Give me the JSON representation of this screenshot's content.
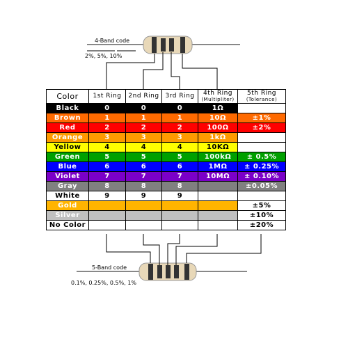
{
  "top_label": {
    "title": "4-Band code",
    "tolerances": "2%, 5%, 10%"
  },
  "bottom_label": {
    "title": "5-Band code",
    "tolerances": "0.1%, 0.25%, 0.5%, 1%"
  },
  "table": {
    "columns": [
      "Color",
      "1st Ring",
      "2nd Ring",
      "3rd Ring",
      "4th Ring",
      "5th Ring"
    ],
    "column_notes": [
      null,
      null,
      null,
      null,
      "(Multipliter)",
      "(Tolerance)"
    ],
    "rows": [
      [
        "Black",
        "0",
        "0",
        "0",
        "1Ω",
        null
      ],
      [
        "Brown",
        "1",
        "1",
        "1",
        "10Ω",
        "±1%"
      ],
      [
        "Red",
        "2",
        "2",
        "2",
        "100Ω",
        "±2%"
      ],
      [
        "Orange",
        "3",
        "3",
        "3",
        "1kΩ",
        null
      ],
      [
        "Yellow",
        "4",
        "4",
        "4",
        "10KΩ",
        null
      ],
      [
        "Green",
        "5",
        "5",
        "5",
        "100kΩ",
        "± 0.5%"
      ],
      [
        "Blue",
        "6",
        "6",
        "6",
        "1MΩ",
        "± 0.25%"
      ],
      [
        "Violet",
        "7",
        "7",
        "7",
        "10MΩ",
        "± 0.10%"
      ],
      [
        "Gray",
        "8",
        "8",
        "8",
        null,
        "±0.05%"
      ],
      [
        "White",
        "9",
        "9",
        "9",
        null,
        null
      ],
      [
        "Gold",
        null,
        null,
        null,
        null,
        "±5%"
      ],
      [
        "Silver",
        null,
        null,
        null,
        null,
        "±10%"
      ],
      [
        "No Color",
        null,
        null,
        null,
        null,
        "±20%"
      ]
    ]
  }
}
